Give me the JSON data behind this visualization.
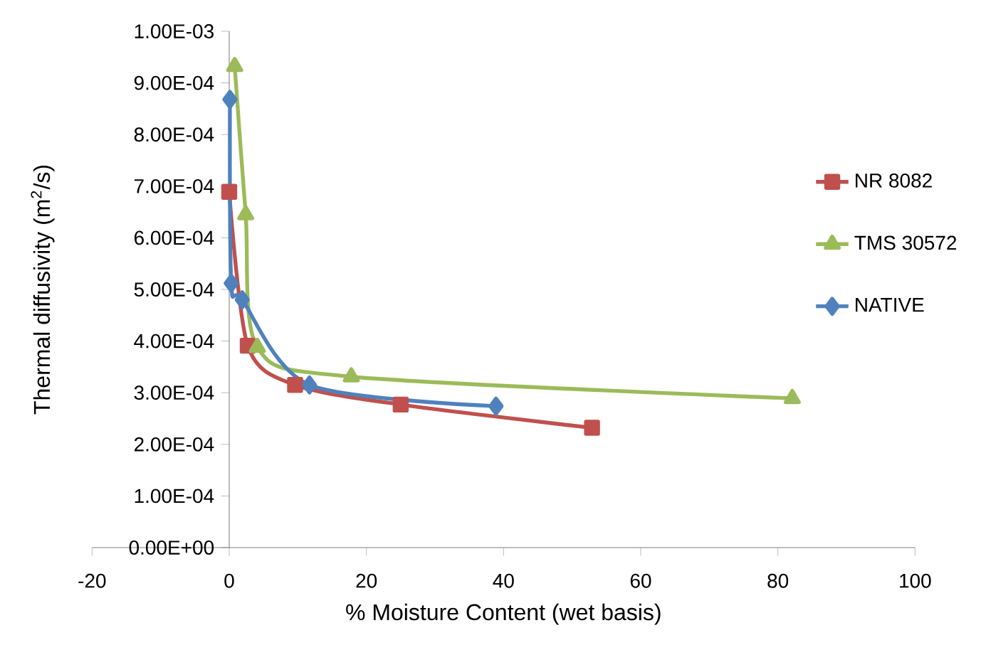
{
  "chart_data": {
    "type": "line",
    "xlabel": "% Moisture Content  (wet basis)",
    "ylabel": "Thermal diffusivity (m$^{2}$/s)",
    "xlim": [
      -20,
      100
    ],
    "xticks": [
      -20,
      0,
      20,
      40,
      60,
      80,
      100
    ],
    "ylim": [
      0,
      0.001
    ],
    "yticks": [
      {
        "value": 0,
        "label": "0.00E+00"
      },
      {
        "value": 0.0001,
        "label": "1.00E-04"
      },
      {
        "value": 0.0002,
        "label": "2.00E-04"
      },
      {
        "value": 0.0003,
        "label": "3.00E-04"
      },
      {
        "value": 0.0004,
        "label": "4.00E-04"
      },
      {
        "value": 0.0005,
        "label": "5.00E-04"
      },
      {
        "value": 0.0006,
        "label": "6.00E-04"
      },
      {
        "value": 0.0007,
        "label": "7.00E-04"
      },
      {
        "value": 0.0008,
        "label": "8.00E-04"
      },
      {
        "value": 0.0009,
        "label": "9.00E-04"
      },
      {
        "value": 0.001,
        "label": "1.00E-03"
      }
    ],
    "grid": false,
    "legend": "right",
    "line_style": "solid",
    "series": [
      {
        "name": "NR 8082",
        "color": "#c0504d",
        "marker": "square",
        "x": [
          0,
          2.7,
          9.6,
          25.0,
          52.9
        ],
        "values": [
          0.000689,
          0.000391,
          0.000315,
          0.000277,
          0.000232
        ]
      },
      {
        "name": "TMS 30572",
        "color": "#9bbb59",
        "marker": "triangle",
        "x": [
          0.8,
          2.4,
          4.1,
          17.8,
          82.1
        ],
        "values": [
          0.000932,
          0.000645,
          0.000388,
          0.000331,
          0.000289
        ]
      },
      {
        "name": "NATIVE",
        "color": "#4f81bd",
        "marker": "diamond",
        "x": [
          0.1,
          0.3,
          1.9,
          11.7,
          38.9
        ],
        "values": [
          0.000868,
          0.000512,
          0.00048,
          0.000315,
          0.000274
        ]
      }
    ]
  }
}
